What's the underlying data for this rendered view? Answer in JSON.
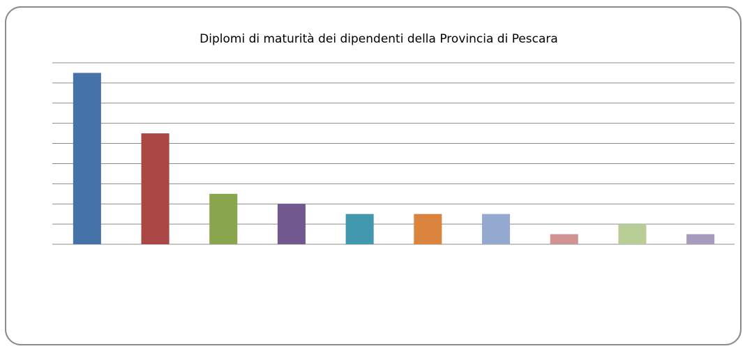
{
  "chart_data": {
    "type": "bar",
    "title": "Diplomi di maturità dei dipendenti della Provincia di Pescara",
    "categories": [
      null,
      null,
      null,
      null,
      null,
      null,
      null,
      null,
      null,
      null
    ],
    "values": [
      17,
      11,
      5,
      4,
      3,
      3,
      3,
      1,
      2,
      1
    ],
    "colors": [
      "#4572a7",
      "#aa4643",
      "#89a54e",
      "#71588f",
      "#4198af",
      "#db843d",
      "#93a9cf",
      "#d19392",
      "#b9cd96",
      "#a99bbd"
    ],
    "ylim": [
      0,
      18
    ],
    "yticks": [
      0,
      2,
      4,
      6,
      8,
      10,
      12,
      14,
      16,
      18
    ],
    "grid": true
  }
}
